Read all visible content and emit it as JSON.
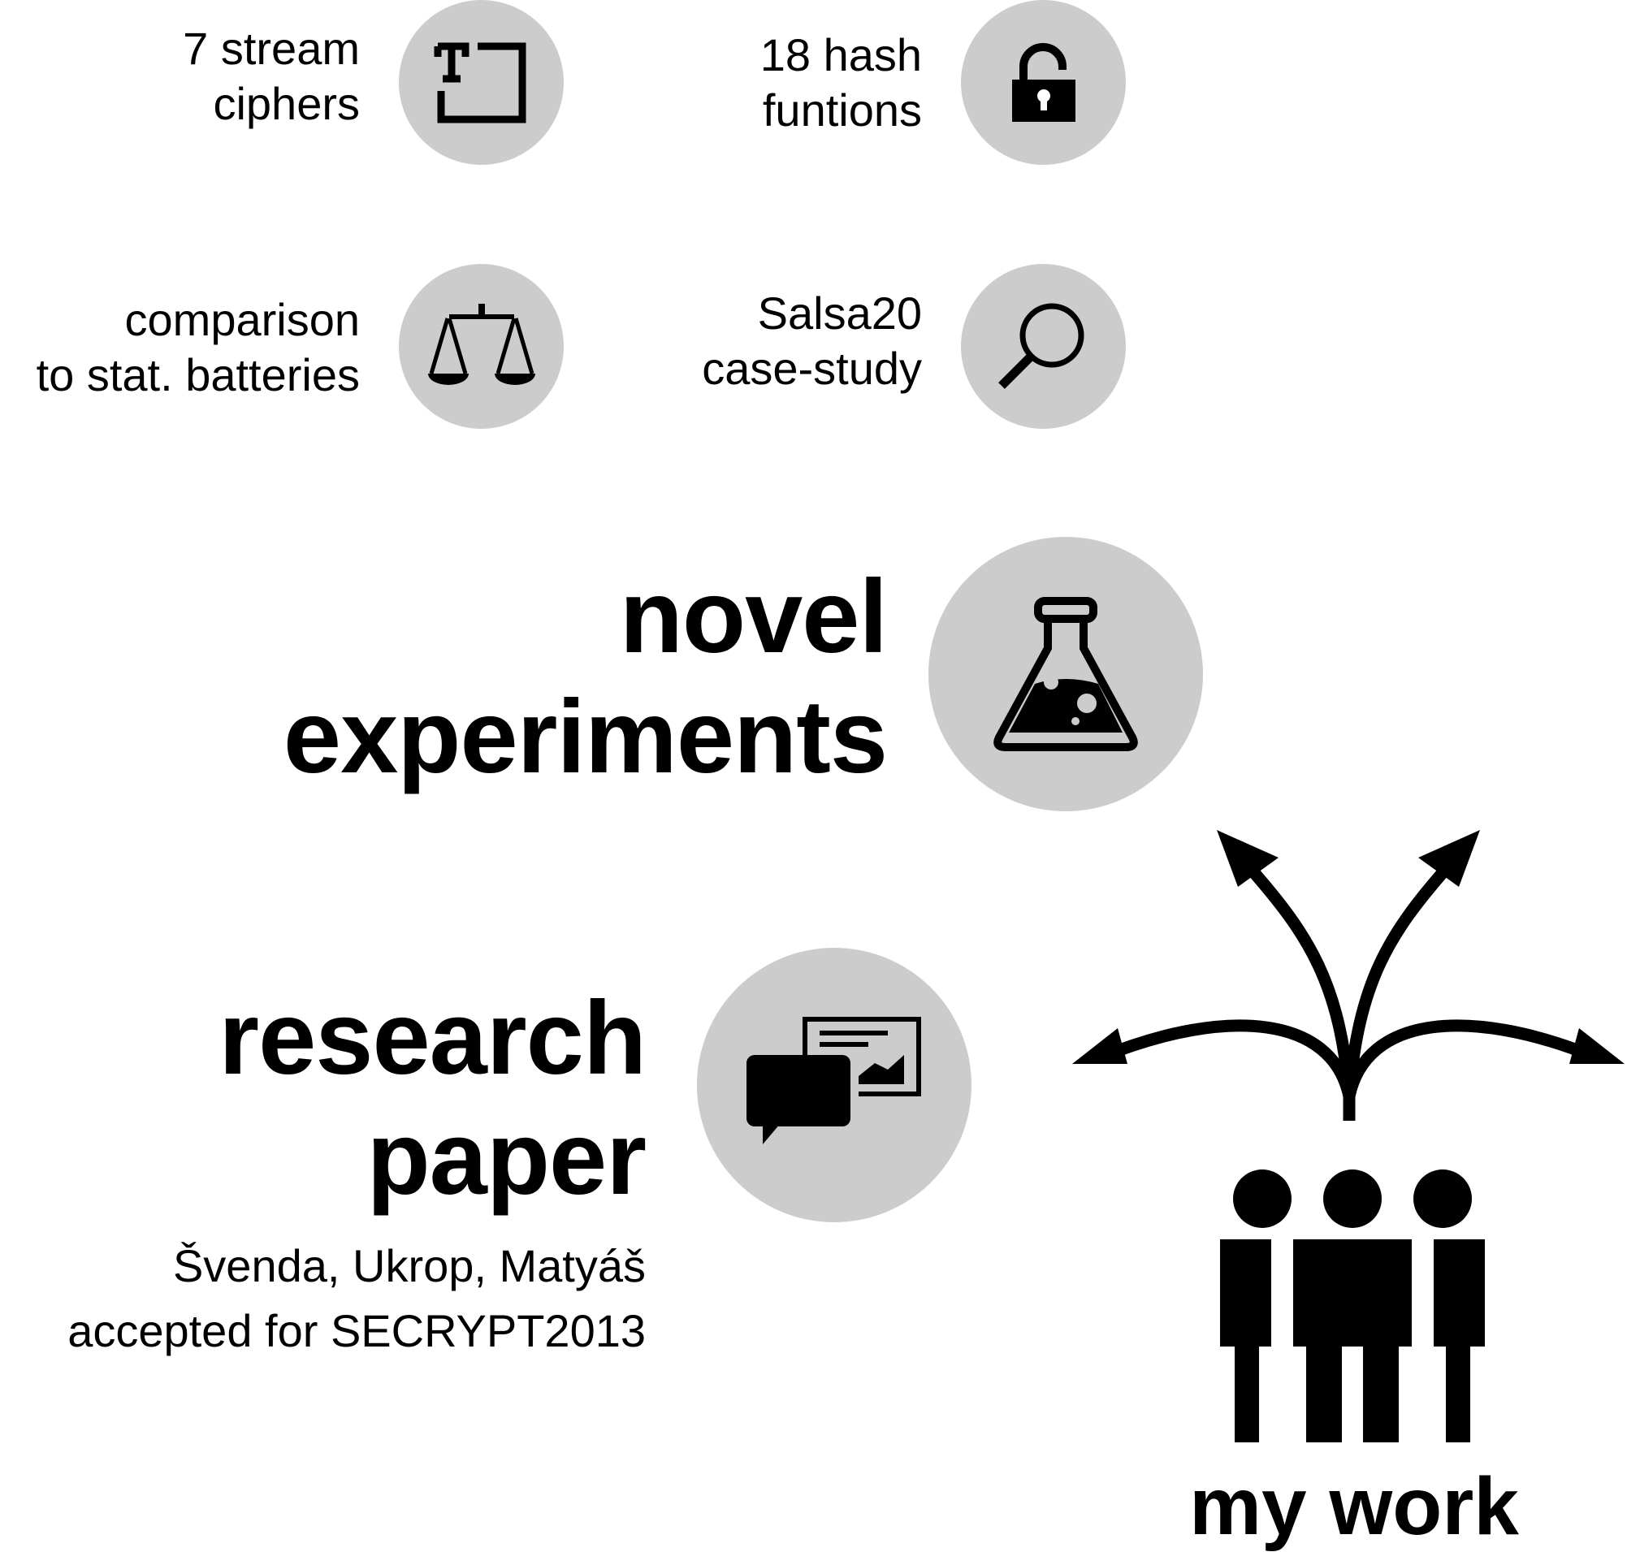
{
  "items": {
    "stream": {
      "line1": "7 stream",
      "line2": "ciphers",
      "icon": "text-frame-icon"
    },
    "hash": {
      "line1": "18 hash",
      "line2": "funtions",
      "icon": "padlock-icon"
    },
    "comparison": {
      "line1": "comparison",
      "line2": "to stat. batteries",
      "icon": "scales-icon"
    },
    "salsa": {
      "line1": "Salsa20",
      "line2": "case-study",
      "icon": "magnifier-icon"
    }
  },
  "experiments": {
    "line1": "novel",
    "line2": "experiments",
    "icon": "flask-icon"
  },
  "paper": {
    "line1": "research",
    "line2": "paper",
    "authors": "Švenda, Ukrop, Matyáš",
    "venue": "accepted for SECRYPT2013",
    "icon": "presentation-chat-icon"
  },
  "mywork": {
    "label": "my work",
    "icon": "group-icon",
    "arrows_icon": "branching-arrows-icon"
  },
  "colors": {
    "circle": "#cccccc",
    "ink": "#000000"
  }
}
